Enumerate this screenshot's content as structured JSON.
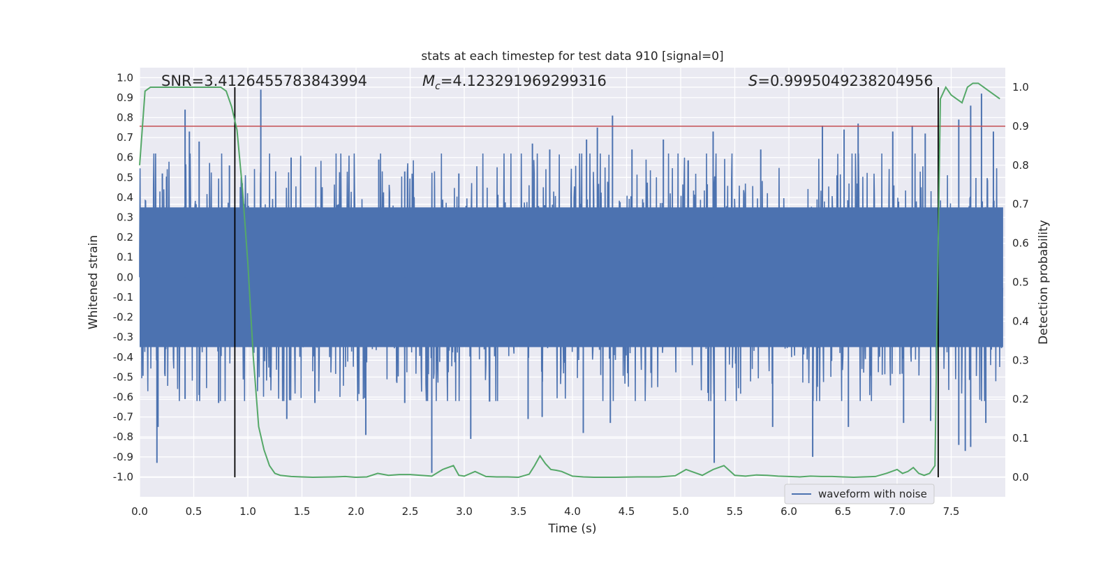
{
  "chart_data": {
    "type": "line",
    "title": "stats at each timestep for test data 910 [signal=0]",
    "xlabel": "Time (s)",
    "ylabel": "Whitened strain",
    "y2label": "Detection probability",
    "xlim": [
      0.0,
      8.0
    ],
    "ylim": [
      -1.1,
      1.05
    ],
    "y2lim": [
      -0.05,
      1.05
    ],
    "xticks": [
      "0.0",
      "0.5",
      "1.0",
      "1.5",
      "2.0",
      "2.5",
      "3.0",
      "3.5",
      "4.0",
      "4.5",
      "5.0",
      "5.5",
      "6.0",
      "6.5",
      "7.0",
      "7.5"
    ],
    "yticks": [
      "1.0",
      "0.9",
      "0.8",
      "0.7",
      "0.6",
      "0.5",
      "0.4",
      "0.3",
      "0.2",
      "0.1",
      "0.0",
      "-0.1",
      "-0.2",
      "-0.3",
      "-0.4",
      "-0.5",
      "-0.6",
      "-0.7",
      "-0.8",
      "-0.9",
      "-1.0"
    ],
    "y2ticks": [
      "1.0",
      "0.9",
      "0.8",
      "0.7",
      "0.6",
      "0.5",
      "0.4",
      "0.3",
      "0.2",
      "0.1",
      "0.0"
    ],
    "grid": true,
    "legend_position": "bottom-right",
    "annotations": {
      "snr": "SNR=3.4126455783843994",
      "mc_symbol": "M",
      "mc_sub": "c",
      "mc_value": "=4.123291969299316",
      "s_symbol": "S",
      "s_value": "=0.9995049238204956"
    },
    "series": [
      {
        "name": "waveform with noise",
        "color": "#4c72b0",
        "description_values": "noise",
        "envelope_typical": 0.35,
        "peaks": [
          [
            0.21,
            0.52
          ],
          [
            0.42,
            0.84
          ],
          [
            0.46,
            0.73
          ],
          [
            0.55,
            0.68
          ],
          [
            0.83,
            0.56
          ],
          [
            1.12,
            0.94
          ],
          [
            1.4,
            0.6
          ],
          [
            2.21,
            0.59
          ],
          [
            2.45,
            0.53
          ],
          [
            2.95,
            0.52
          ],
          [
            3.63,
            0.67
          ],
          [
            3.79,
            0.64
          ],
          [
            4.13,
            0.69
          ],
          [
            4.23,
            0.75
          ],
          [
            4.37,
            0.81
          ],
          [
            4.55,
            0.64
          ],
          [
            4.84,
            0.69
          ],
          [
            5.3,
            0.73
          ],
          [
            5.74,
            0.64
          ],
          [
            6.31,
            0.76
          ],
          [
            6.51,
            0.74
          ],
          [
            6.64,
            0.77
          ],
          [
            6.96,
            0.73
          ],
          [
            7.14,
            0.76
          ],
          [
            7.26,
            0.72
          ],
          [
            7.57,
            0.79
          ],
          [
            7.68,
            0.86
          ],
          [
            7.78,
            0.92
          ],
          [
            7.89,
            0.73
          ],
          [
            0.16,
            -0.93
          ],
          [
            0.17,
            -0.75
          ],
          [
            0.42,
            -0.61
          ],
          [
            0.55,
            -0.59
          ],
          [
            0.73,
            -0.63
          ],
          [
            1.36,
            -0.71
          ],
          [
            1.62,
            -0.63
          ],
          [
            2.09,
            -0.79
          ],
          [
            2.45,
            -0.63
          ],
          [
            2.7,
            -0.98
          ],
          [
            3.06,
            -0.81
          ],
          [
            3.59,
            -0.71
          ],
          [
            3.72,
            -0.7
          ],
          [
            4.1,
            -0.78
          ],
          [
            4.35,
            -0.73
          ],
          [
            5.31,
            -0.93
          ],
          [
            5.85,
            -0.75
          ],
          [
            6.22,
            -0.9
          ],
          [
            6.55,
            -0.75
          ],
          [
            7.06,
            -0.73
          ],
          [
            7.31,
            -0.72
          ],
          [
            7.57,
            -0.84
          ],
          [
            7.63,
            -0.87
          ],
          [
            7.68,
            -0.85
          ],
          [
            7.82,
            -0.73
          ]
        ]
      },
      {
        "name": "",
        "color": "#55a868",
        "axis": "right",
        "x": [
          0.0,
          0.05,
          0.1,
          0.2,
          0.3,
          0.4,
          0.5,
          0.6,
          0.7,
          0.75,
          0.8,
          0.85,
          0.9,
          0.95,
          1.0,
          1.05,
          1.1,
          1.15,
          1.2,
          1.25,
          1.3,
          1.4,
          1.5,
          1.6,
          1.8,
          1.9,
          2.0,
          2.1,
          2.2,
          2.3,
          2.4,
          2.5,
          2.6,
          2.7,
          2.8,
          2.9,
          2.95,
          3.0,
          3.1,
          3.2,
          3.3,
          3.4,
          3.5,
          3.6,
          3.65,
          3.7,
          3.75,
          3.8,
          3.85,
          3.9,
          4.0,
          4.1,
          4.2,
          4.4,
          4.6,
          4.8,
          4.95,
          5.05,
          5.1,
          5.15,
          5.2,
          5.3,
          5.4,
          5.5,
          5.6,
          5.7,
          5.8,
          5.9,
          6.0,
          6.1,
          6.2,
          6.3,
          6.4,
          6.5,
          6.6,
          6.8,
          6.9,
          7.0,
          7.05,
          7.1,
          7.15,
          7.2,
          7.25,
          7.3,
          7.35,
          7.38,
          7.4,
          7.45,
          7.5,
          7.6,
          7.65,
          7.7,
          7.75,
          7.8,
          7.85,
          7.95
        ],
        "values": [
          0.8,
          0.99,
          1.0,
          1.0,
          1.0,
          1.0,
          1.0,
          1.0,
          1.0,
          1.0,
          0.99,
          0.95,
          0.89,
          0.74,
          0.55,
          0.31,
          0.13,
          0.07,
          0.03,
          0.01,
          0.005,
          0.002,
          0.001,
          0.0,
          0.001,
          0.002,
          0.0,
          0.001,
          0.01,
          0.005,
          0.007,
          0.007,
          0.005,
          0.003,
          0.02,
          0.03,
          0.005,
          0.003,
          0.015,
          0.002,
          0.001,
          0.001,
          0.0,
          0.008,
          0.03,
          0.055,
          0.035,
          0.02,
          0.018,
          0.015,
          0.003,
          0.001,
          0.0,
          0.0,
          0.001,
          0.001,
          0.004,
          0.02,
          0.015,
          0.01,
          0.005,
          0.02,
          0.03,
          0.005,
          0.003,
          0.006,
          0.005,
          0.003,
          0.002,
          0.001,
          0.003,
          0.002,
          0.002,
          0.001,
          0.0,
          0.002,
          0.01,
          0.02,
          0.01,
          0.015,
          0.025,
          0.01,
          0.005,
          0.01,
          0.03,
          0.6,
          0.97,
          1.0,
          0.98,
          0.96,
          1.0,
          1.01,
          1.01,
          1.0,
          0.99,
          0.97
        ]
      }
    ],
    "reference_lines": {
      "hline_y_right": 0.9,
      "hline_color": "#c44e52",
      "vlines_x": [
        0.88,
        7.38
      ],
      "vline_color": "#000000"
    }
  }
}
